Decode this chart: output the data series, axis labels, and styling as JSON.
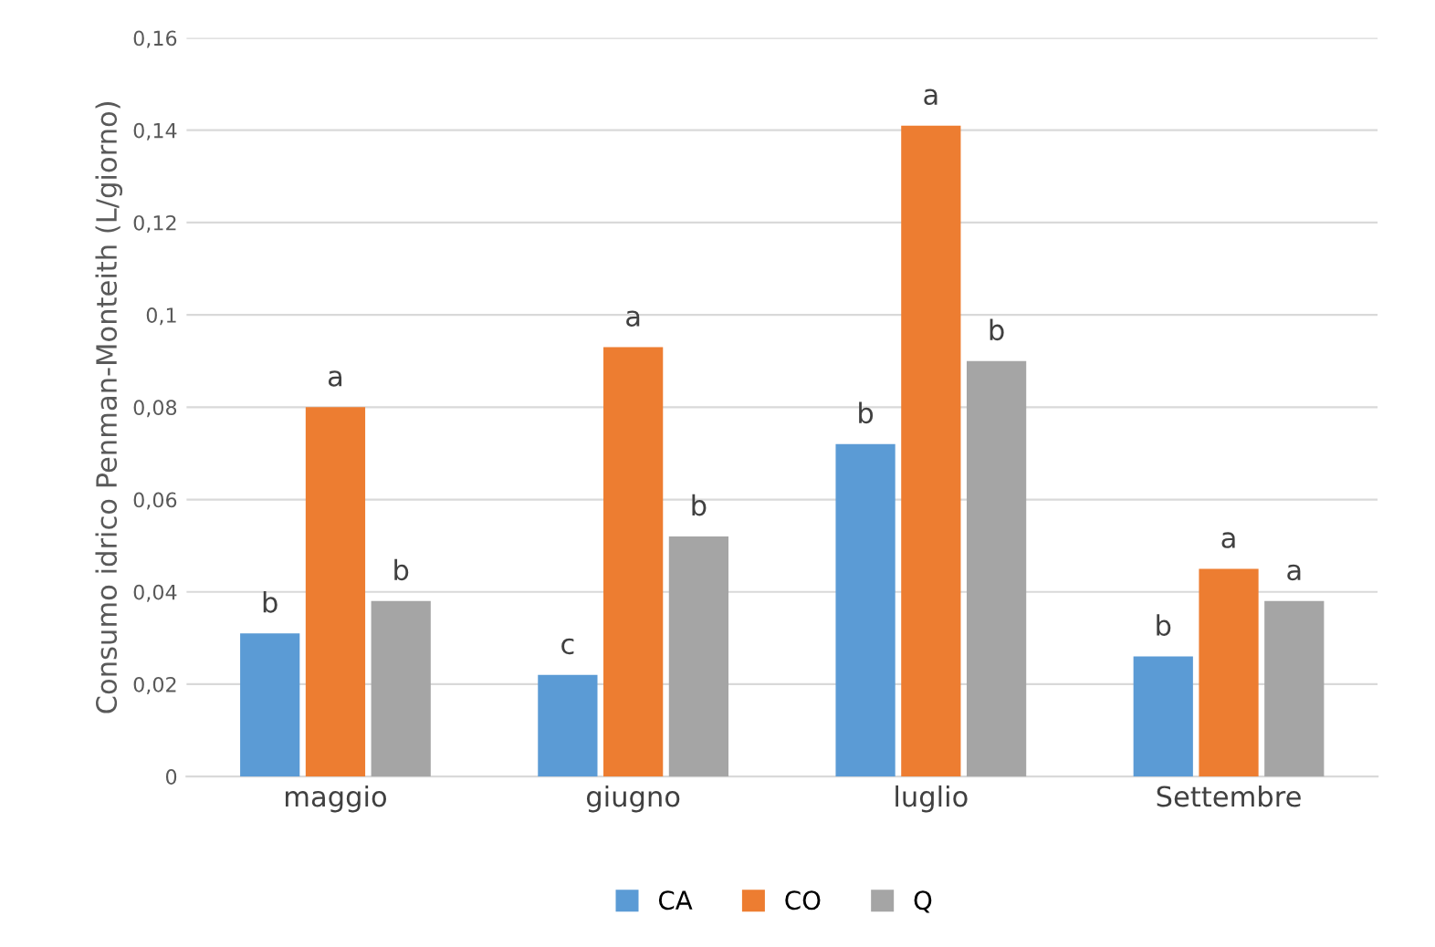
{
  "chart_data": {
    "type": "bar",
    "ylabel": "Consumo idrico Penman-Monteith (L/giorno)",
    "categories": [
      "maggio",
      "giugno",
      "luglio",
      "Settembre"
    ],
    "series": [
      {
        "name": "CA",
        "color": "#5b9bd5",
        "values": [
          0.031,
          0.022,
          0.072,
          0.026
        ],
        "value_labels": [
          "b",
          "c",
          "b",
          "b"
        ]
      },
      {
        "name": "CO",
        "color": "#ed7d31",
        "values": [
          0.08,
          0.093,
          0.141,
          0.045
        ],
        "value_labels": [
          "a",
          "a",
          "a",
          "a"
        ]
      },
      {
        "name": "Q",
        "color": "#a5a5a5",
        "values": [
          0.038,
          0.052,
          0.09,
          0.038
        ],
        "value_labels": [
          "b",
          "b",
          "b",
          "a"
        ]
      }
    ],
    "ylim": [
      0,
      0.16
    ],
    "yticks": [
      {
        "value": 0,
        "label": "0"
      },
      {
        "value": 0.02,
        "label": "0,02"
      },
      {
        "value": 0.04,
        "label": "0,04"
      },
      {
        "value": 0.06,
        "label": "0,06"
      },
      {
        "value": 0.08,
        "label": "0,08"
      },
      {
        "value": 0.1,
        "label": "0,1"
      },
      {
        "value": 0.12,
        "label": "0,12"
      },
      {
        "value": 0.14,
        "label": "0,14"
      },
      {
        "value": 0.16,
        "label": "0,16"
      }
    ],
    "grid": "y",
    "legend": "bottom"
  }
}
